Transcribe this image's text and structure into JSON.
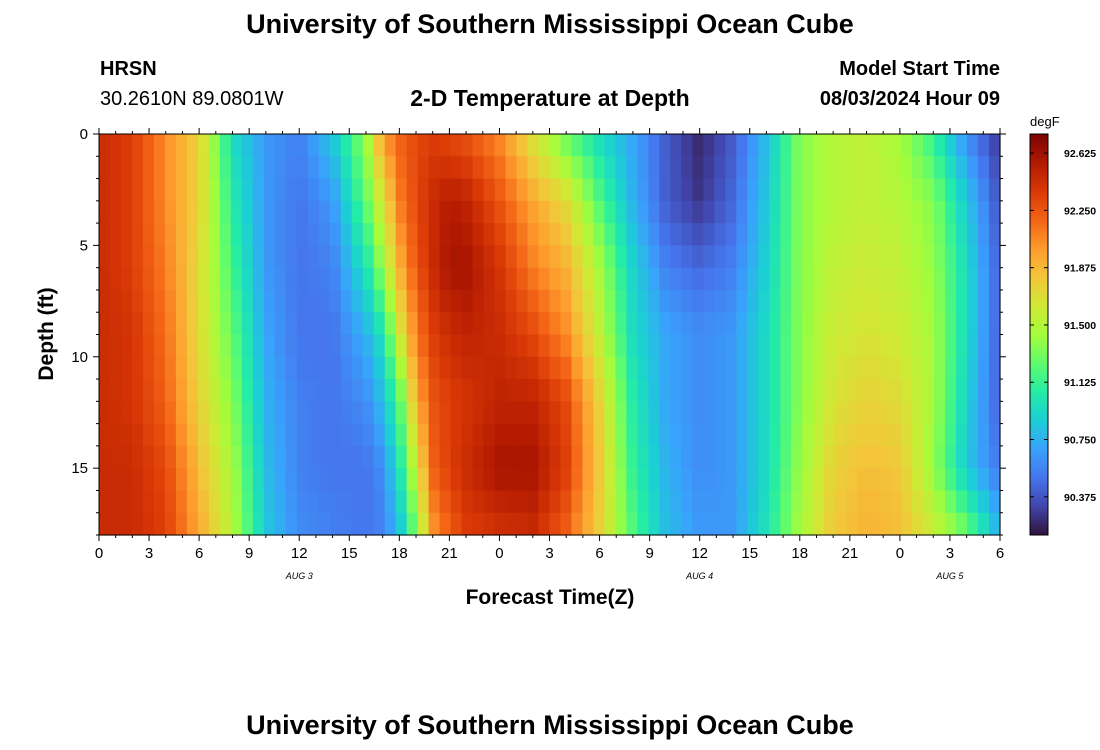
{
  "page": {
    "title_top": "University of Southern Mississippi Ocean Cube",
    "title_bottom": "University of Southern Mississippi Ocean Cube",
    "station": "HRSN",
    "coords": "30.2610N  89.0801W",
    "model_start_label": "Model Start Time",
    "model_start_value": "08/03/2024 Hour 09"
  },
  "chart_data": {
    "type": "heatmap",
    "title": "2-D Temperature at Depth",
    "xlabel": "Forecast Time(Z)",
    "ylabel": "Depth (ft)",
    "x_unit": "hours since 08/03/2024 00Z",
    "xlim": [
      0,
      54
    ],
    "ylim": [
      18,
      0
    ],
    "x_ticks": [
      {
        "value": 0,
        "label": "0"
      },
      {
        "value": 3,
        "label": "3"
      },
      {
        "value": 6,
        "label": "6"
      },
      {
        "value": 9,
        "label": "9"
      },
      {
        "value": 12,
        "label": "12"
      },
      {
        "value": 15,
        "label": "15"
      },
      {
        "value": 18,
        "label": "18"
      },
      {
        "value": 21,
        "label": "21"
      },
      {
        "value": 24,
        "label": "0"
      },
      {
        "value": 27,
        "label": "3"
      },
      {
        "value": 30,
        "label": "6"
      },
      {
        "value": 33,
        "label": "9"
      },
      {
        "value": 36,
        "label": "12"
      },
      {
        "value": 39,
        "label": "15"
      },
      {
        "value": 42,
        "label": "18"
      },
      {
        "value": 45,
        "label": "21"
      },
      {
        "value": 48,
        "label": "0"
      },
      {
        "value": 51,
        "label": "3"
      },
      {
        "value": 54,
        "label": "6"
      }
    ],
    "date_labels": [
      {
        "value": 12,
        "label": "AUG 3"
      },
      {
        "value": 36,
        "label": "AUG 4"
      },
      {
        "value": 51,
        "label": "AUG 5"
      }
    ],
    "y_ticks": [
      0,
      5,
      10,
      15
    ],
    "colorbar": {
      "unit": "degF",
      "min": 90.125,
      "max": 92.75,
      "ticks": [
        "92.625",
        "92.250",
        "91.875",
        "91.500",
        "91.125",
        "90.750",
        "90.375"
      ],
      "tick_values": [
        92.625,
        92.25,
        91.875,
        91.5,
        91.125,
        90.75,
        90.375
      ],
      "palette": [
        "#30123b",
        "#4145ab",
        "#4675ed",
        "#39a2fc",
        "#1bcfd4",
        "#24eca6",
        "#61fc6c",
        "#a4fc3b",
        "#d1e834",
        "#f3c63a",
        "#fe9b2d",
        "#f36315",
        "#d93806",
        "#b11901",
        "#7a0402"
      ]
    },
    "depths_ft": [
      0,
      3,
      6,
      9,
      12,
      15,
      18
    ],
    "time_hours": [
      0,
      2,
      4,
      6,
      8,
      10,
      12,
      14,
      16,
      17,
      18,
      19,
      20,
      21,
      22,
      24,
      26,
      28,
      30,
      32,
      34,
      36,
      38,
      40,
      42,
      44,
      46,
      48,
      50,
      52,
      54
    ],
    "values_degF": [
      [
        92.45,
        92.45,
        92.45,
        92.45,
        92.45,
        92.45,
        92.45
      ],
      [
        92.35,
        92.35,
        92.35,
        92.4,
        92.4,
        92.45,
        92.45
      ],
      [
        92.05,
        92.05,
        92.1,
        92.15,
        92.2,
        92.3,
        92.35
      ],
      [
        91.75,
        91.75,
        91.7,
        91.7,
        91.75,
        91.85,
        91.95
      ],
      [
        90.95,
        91.05,
        91.15,
        91.25,
        91.35,
        91.45,
        91.5
      ],
      [
        90.65,
        90.65,
        90.65,
        90.7,
        90.75,
        90.8,
        90.85
      ],
      [
        90.55,
        90.5,
        90.5,
        90.5,
        90.55,
        90.55,
        90.6
      ],
      [
        90.85,
        90.65,
        90.55,
        90.5,
        90.5,
        90.5,
        90.55
      ],
      [
        91.4,
        91.25,
        91.0,
        90.75,
        90.6,
        90.5,
        90.5
      ],
      [
        92.0,
        91.65,
        91.4,
        91.0,
        90.8,
        90.6,
        90.55
      ],
      [
        92.2,
        92.1,
        91.9,
        91.6,
        91.2,
        91.0,
        90.8
      ],
      [
        92.3,
        92.3,
        92.25,
        92.1,
        91.9,
        91.6,
        91.3
      ],
      [
        92.35,
        92.45,
        92.45,
        92.35,
        92.25,
        92.2,
        92.0
      ],
      [
        92.3,
        92.55,
        92.6,
        92.45,
        92.35,
        92.35,
        92.2
      ],
      [
        92.25,
        92.5,
        92.6,
        92.5,
        92.4,
        92.45,
        92.35
      ],
      [
        92.05,
        92.25,
        92.4,
        92.45,
        92.5,
        92.6,
        92.4
      ],
      [
        91.65,
        91.95,
        92.1,
        92.3,
        92.5,
        92.6,
        92.45
      ],
      [
        91.25,
        91.7,
        91.9,
        92.05,
        92.3,
        92.35,
        92.2
      ],
      [
        90.95,
        91.2,
        91.45,
        91.55,
        91.75,
        91.8,
        91.75
      ],
      [
        90.7,
        90.75,
        90.9,
        90.95,
        91.05,
        91.1,
        91.2
      ],
      [
        90.4,
        90.4,
        90.55,
        90.7,
        90.7,
        90.75,
        90.8
      ],
      [
        90.2,
        90.25,
        90.45,
        90.6,
        90.6,
        90.6,
        90.65
      ],
      [
        90.4,
        90.45,
        90.55,
        90.65,
        90.65,
        90.65,
        90.65
      ],
      [
        90.8,
        90.85,
        90.9,
        90.95,
        90.95,
        90.95,
        91.0
      ],
      [
        91.35,
        91.35,
        91.35,
        91.35,
        91.35,
        91.4,
        91.45
      ],
      [
        91.5,
        91.5,
        91.55,
        91.6,
        91.65,
        91.75,
        91.8
      ],
      [
        91.55,
        91.55,
        91.6,
        91.65,
        91.75,
        91.85,
        91.9
      ],
      [
        91.45,
        91.5,
        91.55,
        91.6,
        91.7,
        91.8,
        91.85
      ],
      [
        91.1,
        91.35,
        91.4,
        91.45,
        91.45,
        91.4,
        91.6
      ],
      [
        90.6,
        90.85,
        90.95,
        90.95,
        90.9,
        90.85,
        91.3
      ],
      [
        90.25,
        90.35,
        90.4,
        90.4,
        90.4,
        90.5,
        90.75
      ]
    ]
  }
}
